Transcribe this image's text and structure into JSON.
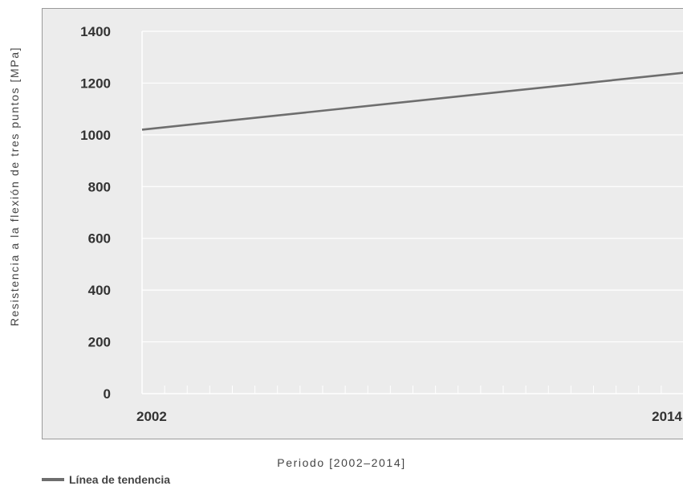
{
  "chart_data": {
    "type": "line",
    "xlabel": "Periodo [2002–2014]",
    "ylabel": "Resistencia a la flexión de tres puntos [MPa]",
    "xlim": [
      2002,
      2014
    ],
    "ylim": [
      0,
      1400
    ],
    "yticks": [
      0,
      200,
      400,
      600,
      800,
      1000,
      1200,
      1400
    ],
    "xticks": [
      2002,
      2014
    ],
    "grid": true,
    "legend_position": "bottom-left",
    "series": [
      {
        "name": "Línea de tendencia",
        "x": [
          2002,
          2014
        ],
        "y": [
          1020,
          1240
        ],
        "color": "#6e6e6e"
      }
    ]
  },
  "colors": {
    "plot_background": "#ececec",
    "gridline": "#ffffff",
    "frame": "#9a9a9a"
  }
}
